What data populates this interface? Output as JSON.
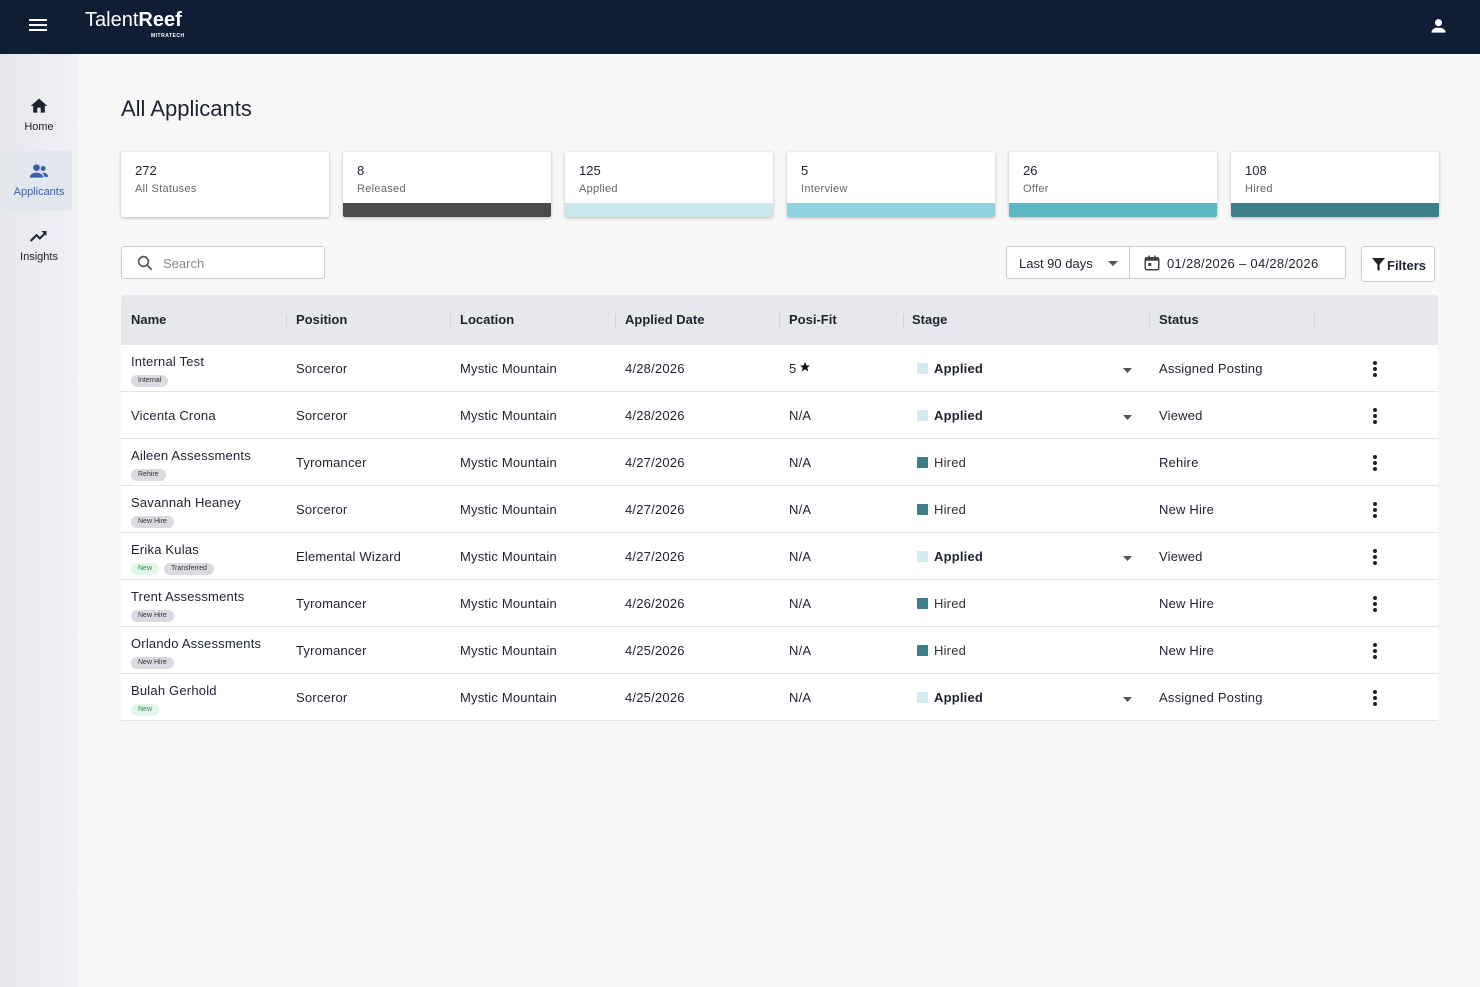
{
  "header": {
    "brand_light": "Talent",
    "brand_bold": "Reef",
    "brand_sub": "MITRATECH"
  },
  "nav": [
    {
      "label": "Home",
      "icon": "home"
    },
    {
      "label": "Applicants",
      "icon": "people",
      "active": true
    },
    {
      "label": "Insights",
      "icon": "trend"
    }
  ],
  "page_title": "All Applicants",
  "status_cards": [
    {
      "count": 272,
      "label": "All Statuses"
    },
    {
      "count": 8,
      "label": "Released",
      "color": "#4b4b4b"
    },
    {
      "count": 125,
      "label": "Applied",
      "color": "#c8e8ee"
    },
    {
      "count": 5,
      "label": "Interview",
      "color": "#8dd2de"
    },
    {
      "count": 26,
      "label": "Offer",
      "color": "#5db6c4"
    },
    {
      "count": 108,
      "label": "Hired",
      "color": "#3e7f87"
    }
  ],
  "toolbar": {
    "search_placeholder": "Search",
    "range": "Last 90 days",
    "dates": "01/28/2026 – 04/28/2026",
    "filters": "Filters"
  },
  "table": {
    "columns": [
      "Name",
      "Position",
      "Location",
      "Applied Date",
      "Posi-Fit",
      "Stage",
      "Status"
    ],
    "stage_styles": {
      "Applied": {
        "color": "#d2ecf1",
        "bold": true,
        "dropdown": true
      },
      "Hired": {
        "color": "#3e7f87",
        "bold": false,
        "dropdown": false
      }
    },
    "tag_styles": {
      "new": {
        "bg": "#e3f6ea",
        "fg": "#2e8b4e"
      },
      "gray": {
        "bg": "#d9dbe0",
        "fg": "#333"
      }
    },
    "rows": [
      {
        "name": "Internal Test",
        "tags": [
          {
            "text": "Internal",
            "style": "gray"
          }
        ],
        "position": "Sorceror",
        "location": "Mystic Mountain",
        "date": "4/28/2026",
        "fit": "5",
        "fit_star": true,
        "stage": "Applied",
        "status": "Assigned Posting"
      },
      {
        "name": "Vicenta Crona",
        "tags": [],
        "position": "Sorceror",
        "location": "Mystic Mountain",
        "date": "4/28/2026",
        "fit": "N/A",
        "stage": "Applied",
        "status": "Viewed"
      },
      {
        "name": "Aileen Assessments",
        "tags": [
          {
            "text": "Rehire",
            "style": "gray"
          }
        ],
        "position": "Tyromancer",
        "location": "Mystic Mountain",
        "date": "4/27/2026",
        "fit": "N/A",
        "stage": "Hired",
        "status": "Rehire"
      },
      {
        "name": "Savannah Heaney",
        "tags": [
          {
            "text": "New Hire",
            "style": "gray"
          }
        ],
        "position": "Sorceror",
        "location": "Mystic Mountain",
        "date": "4/27/2026",
        "fit": "N/A",
        "stage": "Hired",
        "status": "New Hire"
      },
      {
        "name": "Erika Kulas",
        "tags": [
          {
            "text": "New",
            "style": "new"
          },
          {
            "text": "Transferred",
            "style": "gray"
          }
        ],
        "position": "Elemental Wizard",
        "location": "Mystic Mountain",
        "date": "4/27/2026",
        "fit": "N/A",
        "stage": "Applied",
        "status": "Viewed"
      },
      {
        "name": "Trent Assessments",
        "tags": [
          {
            "text": "New Hire",
            "style": "gray"
          }
        ],
        "position": "Tyromancer",
        "location": "Mystic Mountain",
        "date": "4/26/2026",
        "fit": "N/A",
        "stage": "Hired",
        "status": "New Hire"
      },
      {
        "name": "Orlando Assessments",
        "tags": [
          {
            "text": "New Hire",
            "style": "gray"
          }
        ],
        "position": "Tyromancer",
        "location": "Mystic Mountain",
        "date": "4/25/2026",
        "fit": "N/A",
        "stage": "Hired",
        "status": "New Hire"
      },
      {
        "name": "Bulah Gerhold",
        "tags": [
          {
            "text": "New",
            "style": "new"
          }
        ],
        "position": "Sorceror",
        "location": "Mystic Mountain",
        "date": "4/25/2026",
        "fit": "N/A",
        "stage": "Applied",
        "status": "Assigned Posting"
      }
    ]
  }
}
